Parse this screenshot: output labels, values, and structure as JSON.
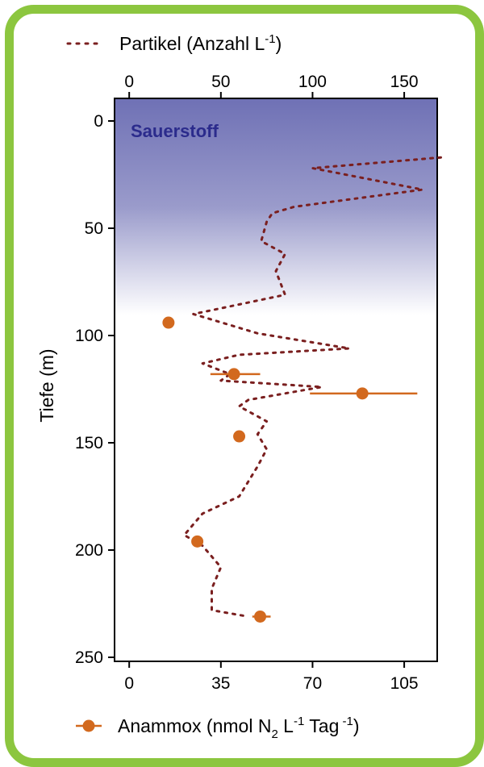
{
  "colors": {
    "frame": "#8cc63f",
    "particle": "#7a1f1f",
    "anammox": "#d2691e",
    "oxygen_top": "#6f71b5",
    "oxygen_label": "#2b2b8c"
  },
  "legend": {
    "particles_pre": "Partikel (Anzahl L",
    "particles_sup": "-1",
    "particles_post": ")",
    "anammox_pre": "Anammox (nmol N",
    "anammox_sub": "2",
    "anammox_mid1": " L",
    "anammox_sup1": "-1",
    "anammox_mid2": " Tag",
    "anammox_sup2": " -1",
    "anammox_post": ")"
  },
  "chart_data": {
    "type": "scatter",
    "ylabel": "Tiefe (m)",
    "region_label": "Sauerstoff",
    "oxygen_zone_depth": [
      0,
      90
    ],
    "y": {
      "range": [
        0,
        252
      ],
      "reversed": true,
      "ticks": [
        0,
        50,
        100,
        150,
        200,
        250
      ]
    },
    "x_top": {
      "range": [
        -8,
        168
      ],
      "ticks": [
        0,
        50,
        100,
        150
      ],
      "tick_labels": [
        "0",
        "50",
        "100",
        "150"
      ]
    },
    "x_bottom": {
      "range": [
        -5.6,
        117.6
      ],
      "ticks": [
        0,
        35,
        70,
        105
      ],
      "tick_labels": [
        "0",
        "35",
        "70",
        "105"
      ]
    },
    "series": [
      {
        "name": "Partikel (Anzahl L-1)",
        "axis": "top",
        "style": "dotted-line",
        "points": [
          [
            170,
            17
          ],
          [
            100,
            22
          ],
          [
            160,
            32
          ],
          [
            90,
            40
          ],
          [
            78,
            43
          ],
          [
            75,
            47
          ],
          [
            72,
            56
          ],
          [
            85,
            62
          ],
          [
            80,
            70
          ],
          [
            85,
            81
          ],
          [
            35,
            90
          ],
          [
            70,
            99
          ],
          [
            120,
            106
          ],
          [
            60,
            109
          ],
          [
            40,
            113
          ],
          [
            55,
            118
          ],
          [
            50,
            121
          ],
          [
            105,
            124
          ],
          [
            65,
            130
          ],
          [
            60,
            133
          ],
          [
            75,
            140
          ],
          [
            70,
            146
          ],
          [
            75,
            153
          ],
          [
            70,
            161
          ],
          [
            65,
            168
          ],
          [
            60,
            175
          ],
          [
            40,
            183
          ],
          [
            35,
            188
          ],
          [
            30,
            193
          ],
          [
            40,
            198
          ],
          [
            50,
            208
          ],
          [
            45,
            218
          ],
          [
            45,
            228
          ],
          [
            65,
            231
          ]
        ]
      },
      {
        "name": "Anammox (nmol N2 L-1 Tag-1)",
        "axis": "bottom",
        "style": "markers-with-error",
        "points": [
          {
            "x": 15,
            "y": 94,
            "xerr": null
          },
          {
            "x": 40,
            "y": 118,
            "xerr": [
              31,
              50
            ]
          },
          {
            "x": 89,
            "y": 127,
            "xerr": [
              69,
              110
            ]
          },
          {
            "x": 42,
            "y": 147,
            "xerr": null
          },
          {
            "x": 26,
            "y": 196,
            "xerr": null
          },
          {
            "x": 50,
            "y": 231,
            "xerr": [
              47,
              54
            ]
          }
        ]
      }
    ]
  }
}
